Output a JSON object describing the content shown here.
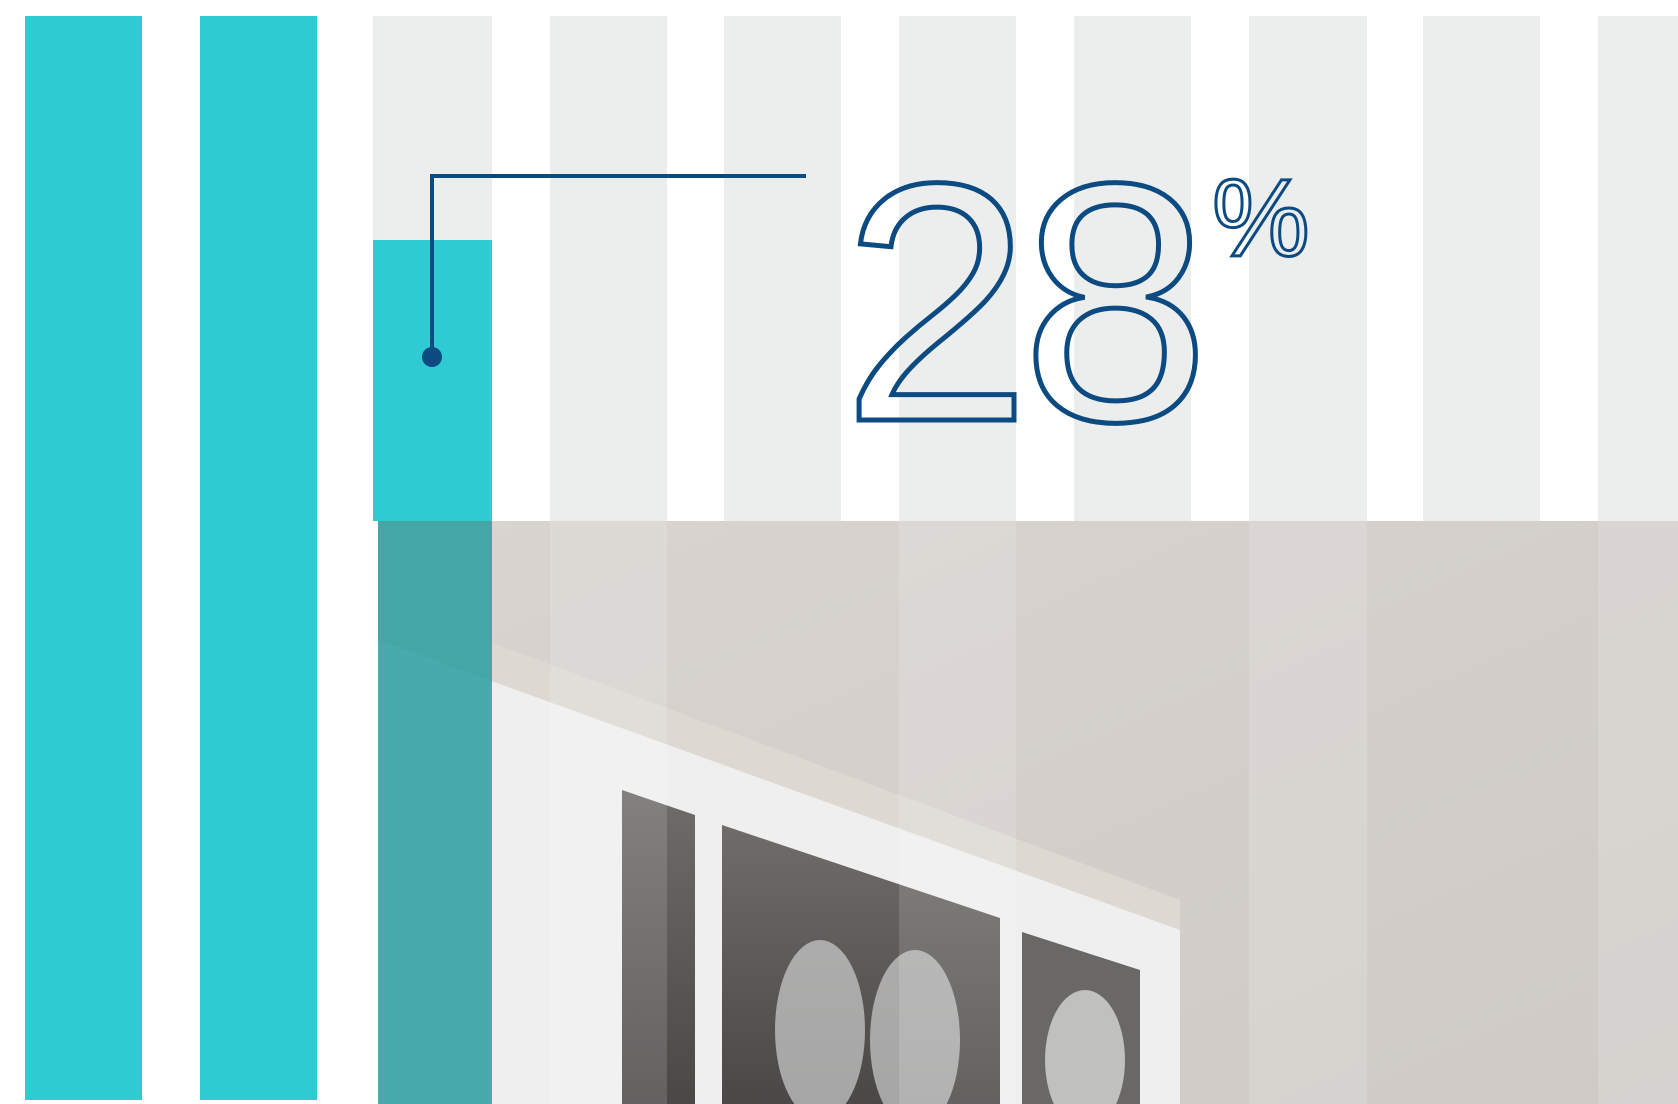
{
  "callout": {
    "value": 28,
    "unit": "%"
  }
}
